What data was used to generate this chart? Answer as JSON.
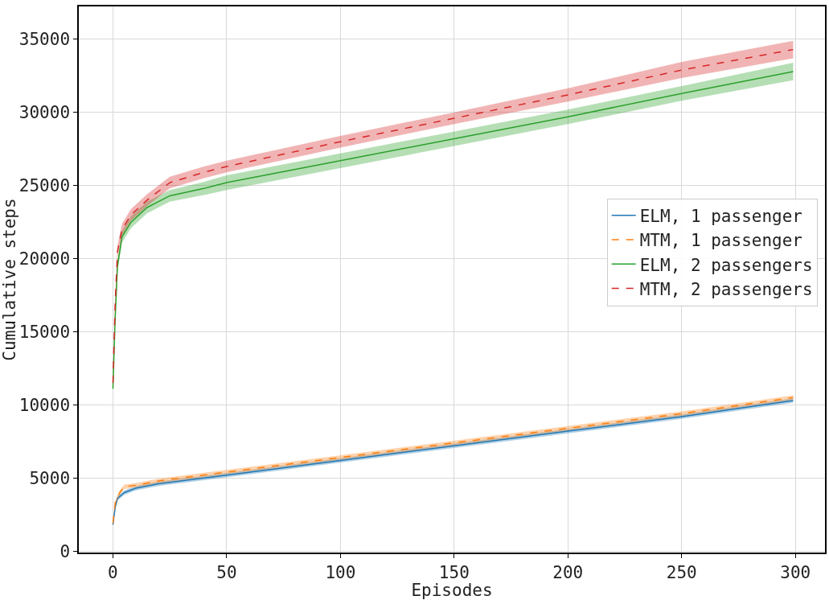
{
  "chart_data": {
    "type": "line",
    "xlabel": "Episodes",
    "ylabel": "Cumulative steps",
    "xlim": [
      -15,
      313
    ],
    "ylim": [
      -100,
      37250
    ],
    "xticks": [
      0,
      50,
      100,
      150,
      200,
      250,
      300
    ],
    "yticks": [
      0,
      5000,
      10000,
      15000,
      20000,
      25000,
      30000,
      35000
    ],
    "grid": true,
    "legend": "right",
    "series": [
      {
        "name": "ELM, 1 passenger",
        "color": "#1f77b4",
        "line_style": "solid",
        "x": [
          0,
          1,
          2,
          5,
          10,
          20,
          50,
          100,
          150,
          200,
          250,
          299
        ],
        "values": [
          1800,
          3000,
          3600,
          4000,
          4300,
          4600,
          5200,
          6200,
          7200,
          8200,
          9200,
          10300
        ],
        "lower": [
          1700,
          2850,
          3450,
          3850,
          4150,
          4450,
          5050,
          6050,
          7050,
          8050,
          9050,
          10150
        ],
        "upper": [
          1900,
          3150,
          3750,
          4150,
          4450,
          4750,
          5350,
          6350,
          7350,
          8350,
          9350,
          10450
        ]
      },
      {
        "name": "MTM, 1 passenger",
        "color": "#ff7f0e",
        "line_style": "dashed",
        "x": [
          0,
          1,
          3,
          5,
          10,
          20,
          50,
          100,
          150,
          200,
          250,
          299
        ],
        "values": [
          1900,
          3300,
          4000,
          4400,
          4500,
          4800,
          5400,
          6400,
          7400,
          8400,
          9400,
          10500
        ],
        "lower": [
          1800,
          3150,
          3850,
          4250,
          4350,
          4650,
          5250,
          6250,
          7250,
          8250,
          9250,
          10350
        ],
        "upper": [
          2000,
          3450,
          4150,
          4550,
          4650,
          4950,
          5550,
          6550,
          7550,
          8550,
          9550,
          10650
        ]
      },
      {
        "name": "ELM, 2 passengers",
        "color": "#2ca02c",
        "line_style": "solid",
        "x": [
          0,
          1,
          2,
          4,
          8,
          15,
          25,
          40,
          50,
          100,
          150,
          200,
          250,
          299
        ],
        "values": [
          11100,
          16000,
          19500,
          21500,
          22500,
          23500,
          24300,
          24800,
          25200,
          26700,
          28200,
          29700,
          31300,
          32800
        ],
        "lower": [
          11000,
          15600,
          19100,
          21100,
          22100,
          23100,
          23900,
          24350,
          24700,
          26200,
          27700,
          29200,
          30800,
          32200
        ],
        "upper": [
          11200,
          16400,
          19900,
          21900,
          22900,
          23900,
          24700,
          25250,
          25700,
          27200,
          28700,
          30200,
          31800,
          33400
        ]
      },
      {
        "name": "MTM, 2 passengers",
        "color": "#d62728",
        "line_style": "dashed",
        "x": [
          0,
          1,
          2,
          4,
          8,
          15,
          25,
          40,
          50,
          100,
          150,
          200,
          250,
          299
        ],
        "values": [
          11500,
          17000,
          20500,
          22000,
          23000,
          24000,
          25200,
          25900,
          26300,
          28000,
          29600,
          31200,
          32900,
          34300
        ],
        "lower": [
          11400,
          16600,
          20100,
          21600,
          22600,
          23600,
          24800,
          25500,
          25900,
          27600,
          29200,
          30750,
          32350,
          33700
        ],
        "upper": [
          11600,
          17400,
          20900,
          22400,
          23400,
          24400,
          25600,
          26300,
          26700,
          28400,
          30000,
          31650,
          33450,
          34900
        ]
      }
    ]
  }
}
